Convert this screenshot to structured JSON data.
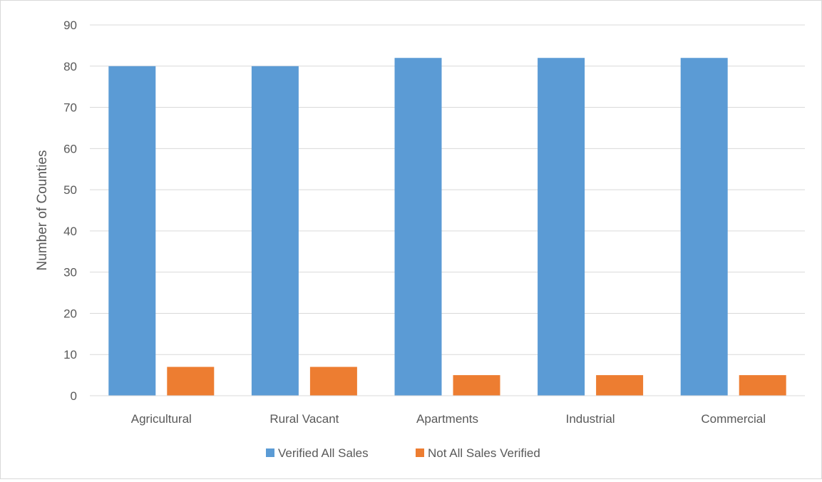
{
  "chart_data": {
    "type": "bar",
    "title": "",
    "xlabel": "",
    "ylabel": "Number of Counties",
    "ylim": [
      0,
      90
    ],
    "yticks": [
      0,
      10,
      20,
      30,
      40,
      50,
      60,
      70,
      80,
      90
    ],
    "grid": true,
    "legend_position": "bottom",
    "categories": [
      "Agricultural",
      "Rural Vacant",
      "Apartments",
      "Industrial",
      "Commercial"
    ],
    "series": [
      {
        "name": "Verified All Sales",
        "color": "#5B9BD5",
        "values": [
          80,
          80,
          82,
          82,
          82
        ]
      },
      {
        "name": "Not All Sales Verified",
        "color": "#ED7D31",
        "values": [
          7,
          7,
          5,
          5,
          5
        ]
      }
    ]
  }
}
